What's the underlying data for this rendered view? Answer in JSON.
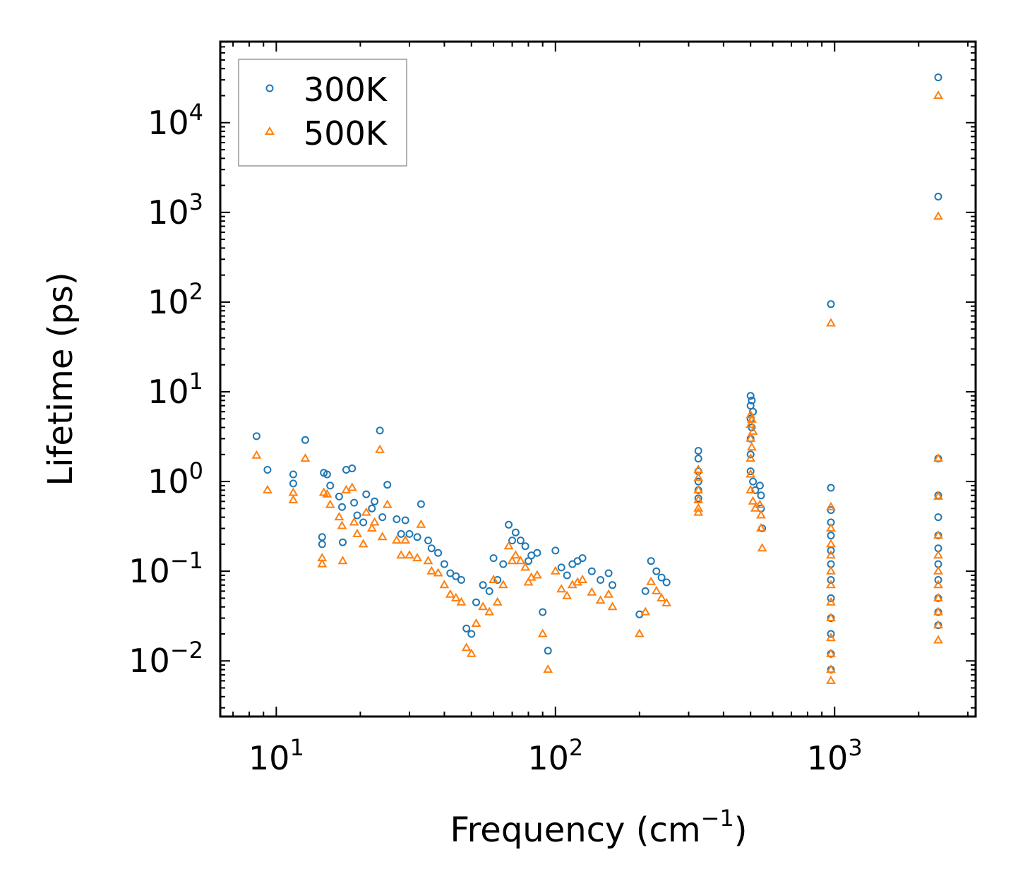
{
  "chart_data": {
    "type": "scatter",
    "title": "",
    "xlabel": "Frequency (cm",
    "xlabel_sup": "−1",
    "xlabel_end": ")",
    "ylabel": "Lifetime (ps)",
    "xscale": "log",
    "yscale": "log",
    "xlim": [
      6.3,
      3200
    ],
    "ylim": [
      0.0024,
      80000
    ],
    "x_ticks": [
      {
        "value": 10,
        "base": "10",
        "exp": "1"
      },
      {
        "value": 100,
        "base": "10",
        "exp": "2"
      },
      {
        "value": 1000,
        "base": "10",
        "exp": "3"
      }
    ],
    "y_ticks": [
      {
        "value": 0.01,
        "base": "10",
        "exp": "−2"
      },
      {
        "value": 0.1,
        "base": "10",
        "exp": "−1"
      },
      {
        "value": 1,
        "base": "10",
        "exp": "0"
      },
      {
        "value": 10,
        "base": "10",
        "exp": "1"
      },
      {
        "value": 100,
        "base": "10",
        "exp": "2"
      },
      {
        "value": 1000,
        "base": "10",
        "exp": "3"
      },
      {
        "value": 10000,
        "base": "10",
        "exp": "4"
      }
    ],
    "legend": {
      "position": "top-left"
    },
    "colors": {
      "s300": "#1f77b4",
      "s500": "#ff7f0e",
      "axis": "#000000",
      "legend_border": "#999999"
    },
    "series": [
      {
        "name": "300K",
        "marker": "circle",
        "color": "#1f77b4",
        "points": [
          [
            8.5,
            3.2
          ],
          [
            9.3,
            1.35
          ],
          [
            11.5,
            1.2
          ],
          [
            11.5,
            0.95
          ],
          [
            12.7,
            2.9
          ],
          [
            14.8,
            1.25
          ],
          [
            15.2,
            1.2
          ],
          [
            15.6,
            0.9
          ],
          [
            14.6,
            0.24
          ],
          [
            14.6,
            0.2
          ],
          [
            16.8,
            0.68
          ],
          [
            17.2,
            0.52
          ],
          [
            17.3,
            0.21
          ],
          [
            17.8,
            1.35
          ],
          [
            18.7,
            1.4
          ],
          [
            19.0,
            0.58
          ],
          [
            19.5,
            0.42
          ],
          [
            20.5,
            0.35
          ],
          [
            21.0,
            0.72
          ],
          [
            22.0,
            0.5
          ],
          [
            22.5,
            0.6
          ],
          [
            23.5,
            3.7
          ],
          [
            24.0,
            0.4
          ],
          [
            25.0,
            0.92
          ],
          [
            27.0,
            0.38
          ],
          [
            28.0,
            0.26
          ],
          [
            29.0,
            0.37
          ],
          [
            30.0,
            0.26
          ],
          [
            32.0,
            0.24
          ],
          [
            33.0,
            0.56
          ],
          [
            35.0,
            0.22
          ],
          [
            36.0,
            0.18
          ],
          [
            38.0,
            0.16
          ],
          [
            40.0,
            0.12
          ],
          [
            42.0,
            0.095
          ],
          [
            44.0,
            0.088
          ],
          [
            46.0,
            0.08
          ],
          [
            48.0,
            0.023
          ],
          [
            50.0,
            0.02
          ],
          [
            52.0,
            0.045
          ],
          [
            55.0,
            0.07
          ],
          [
            58.0,
            0.06
          ],
          [
            60.0,
            0.14
          ],
          [
            62.0,
            0.08
          ],
          [
            65.0,
            0.12
          ],
          [
            68.0,
            0.33
          ],
          [
            70.0,
            0.22
          ],
          [
            72.0,
            0.27
          ],
          [
            75.0,
            0.22
          ],
          [
            78.0,
            0.19
          ],
          [
            80.0,
            0.13
          ],
          [
            82.0,
            0.15
          ],
          [
            86.0,
            0.16
          ],
          [
            90.0,
            0.035
          ],
          [
            94.0,
            0.013
          ],
          [
            100.0,
            0.17
          ],
          [
            105.0,
            0.11
          ],
          [
            110.0,
            0.09
          ],
          [
            115.0,
            0.12
          ],
          [
            120.0,
            0.13
          ],
          [
            125.0,
            0.14
          ],
          [
            135.0,
            0.1
          ],
          [
            145.0,
            0.08
          ],
          [
            155.0,
            0.095
          ],
          [
            160.0,
            0.07
          ],
          [
            200.0,
            0.033
          ],
          [
            210.0,
            0.06
          ],
          [
            220.0,
            0.13
          ],
          [
            230.0,
            0.1
          ],
          [
            240.0,
            0.085
          ],
          [
            250.0,
            0.075
          ],
          [
            325.0,
            2.2
          ],
          [
            325.0,
            1.8
          ],
          [
            325.0,
            1.3
          ],
          [
            325.0,
            1.0
          ],
          [
            325.0,
            0.8
          ],
          [
            325.0,
            0.65
          ],
          [
            500.0,
            9.0
          ],
          [
            500.0,
            7.0
          ],
          [
            500.0,
            5.0
          ],
          [
            500.0,
            3.0
          ],
          [
            500.0,
            2.0
          ],
          [
            500.0,
            1.3
          ],
          [
            505.0,
            8.0
          ],
          [
            505.0,
            4.0
          ],
          [
            510.0,
            6.0
          ],
          [
            510.0,
            1.0
          ],
          [
            520.0,
            0.8
          ],
          [
            540.0,
            0.9
          ],
          [
            545.0,
            0.7
          ],
          [
            545.0,
            0.5
          ],
          [
            550.0,
            0.3
          ],
          [
            970.0,
            95
          ],
          [
            970.0,
            0.85
          ],
          [
            970.0,
            0.48
          ],
          [
            970.0,
            0.35
          ],
          [
            970.0,
            0.25
          ],
          [
            970.0,
            0.17
          ],
          [
            970.0,
            0.12
          ],
          [
            970.0,
            0.08
          ],
          [
            970.0,
            0.05
          ],
          [
            970.0,
            0.03
          ],
          [
            970.0,
            0.02
          ],
          [
            970.0,
            0.012
          ],
          [
            970.0,
            0.008
          ],
          [
            2350.0,
            32000
          ],
          [
            2350.0,
            1500
          ],
          [
            2350.0,
            1.8
          ],
          [
            2350.0,
            0.7
          ],
          [
            2350.0,
            0.4
          ],
          [
            2350.0,
            0.25
          ],
          [
            2350.0,
            0.18
          ],
          [
            2350.0,
            0.12
          ],
          [
            2350.0,
            0.08
          ],
          [
            2350.0,
            0.05
          ],
          [
            2350.0,
            0.035
          ],
          [
            2350.0,
            0.025
          ]
        ]
      },
      {
        "name": "500K",
        "marker": "triangle",
        "color": "#ff7f0e",
        "points": [
          [
            8.5,
            1.95
          ],
          [
            9.3,
            0.8
          ],
          [
            11.5,
            0.75
          ],
          [
            11.5,
            0.62
          ],
          [
            12.7,
            1.8
          ],
          [
            14.8,
            0.75
          ],
          [
            15.2,
            0.72
          ],
          [
            15.6,
            0.55
          ],
          [
            14.6,
            0.14
          ],
          [
            14.6,
            0.12
          ],
          [
            16.8,
            0.4
          ],
          [
            17.2,
            0.32
          ],
          [
            17.3,
            0.13
          ],
          [
            17.8,
            0.8
          ],
          [
            18.7,
            0.85
          ],
          [
            19.0,
            0.35
          ],
          [
            19.5,
            0.26
          ],
          [
            20.5,
            0.2
          ],
          [
            21.0,
            0.45
          ],
          [
            22.0,
            0.3
          ],
          [
            22.5,
            0.35
          ],
          [
            23.5,
            2.25
          ],
          [
            24.0,
            0.24
          ],
          [
            25.0,
            0.55
          ],
          [
            27.0,
            0.22
          ],
          [
            28.0,
            0.15
          ],
          [
            29.0,
            0.22
          ],
          [
            30.0,
            0.15
          ],
          [
            32.0,
            0.14
          ],
          [
            33.0,
            0.33
          ],
          [
            35.0,
            0.13
          ],
          [
            36.0,
            0.1
          ],
          [
            38.0,
            0.095
          ],
          [
            40.0,
            0.07
          ],
          [
            42.0,
            0.055
          ],
          [
            44.0,
            0.05
          ],
          [
            46.0,
            0.045
          ],
          [
            48.0,
            0.014
          ],
          [
            50.0,
            0.012
          ],
          [
            52.0,
            0.026
          ],
          [
            55.0,
            0.04
          ],
          [
            58.0,
            0.035
          ],
          [
            60.0,
            0.08
          ],
          [
            62.0,
            0.045
          ],
          [
            65.0,
            0.07
          ],
          [
            68.0,
            0.19
          ],
          [
            70.0,
            0.13
          ],
          [
            72.0,
            0.15
          ],
          [
            75.0,
            0.13
          ],
          [
            78.0,
            0.11
          ],
          [
            80.0,
            0.075
          ],
          [
            82.0,
            0.085
          ],
          [
            86.0,
            0.09
          ],
          [
            90.0,
            0.02
          ],
          [
            94.0,
            0.008
          ],
          [
            100.0,
            0.1
          ],
          [
            105.0,
            0.063
          ],
          [
            110.0,
            0.053
          ],
          [
            115.0,
            0.07
          ],
          [
            120.0,
            0.075
          ],
          [
            125.0,
            0.08
          ],
          [
            135.0,
            0.058
          ],
          [
            145.0,
            0.047
          ],
          [
            155.0,
            0.055
          ],
          [
            160.0,
            0.04
          ],
          [
            200.0,
            0.02
          ],
          [
            210.0,
            0.035
          ],
          [
            220.0,
            0.076
          ],
          [
            230.0,
            0.06
          ],
          [
            240.0,
            0.05
          ],
          [
            250.0,
            0.044
          ],
          [
            325.0,
            1.35
          ],
          [
            325.0,
            1.1
          ],
          [
            325.0,
            0.8
          ],
          [
            325.0,
            0.62
          ],
          [
            325.0,
            0.5
          ],
          [
            325.0,
            0.45
          ],
          [
            500.0,
            5.5
          ],
          [
            500.0,
            4.3
          ],
          [
            500.0,
            3.0
          ],
          [
            500.0,
            1.8
          ],
          [
            500.0,
            1.2
          ],
          [
            500.0,
            0.8
          ],
          [
            505.0,
            4.9
          ],
          [
            505.0,
            2.4
          ],
          [
            510.0,
            3.6
          ],
          [
            510.0,
            0.6
          ],
          [
            520.0,
            0.5
          ],
          [
            540.0,
            0.55
          ],
          [
            545.0,
            0.42
          ],
          [
            545.0,
            0.3
          ],
          [
            550.0,
            0.18
          ],
          [
            970.0,
            58
          ],
          [
            970.0,
            0.52
          ],
          [
            970.0,
            0.3
          ],
          [
            970.0,
            0.2
          ],
          [
            970.0,
            0.15
          ],
          [
            970.0,
            0.1
          ],
          [
            970.0,
            0.07
          ],
          [
            970.0,
            0.045
          ],
          [
            970.0,
            0.03
          ],
          [
            970.0,
            0.018
          ],
          [
            970.0,
            0.012
          ],
          [
            970.0,
            0.008
          ],
          [
            970.0,
            0.006
          ],
          [
            2350.0,
            20000
          ],
          [
            2350.0,
            900
          ],
          [
            2350.0,
            1.8
          ],
          [
            2350.0,
            0.68
          ],
          [
            2350.0,
            0.25
          ],
          [
            2350.0,
            0.15
          ],
          [
            2350.0,
            0.1
          ],
          [
            2350.0,
            0.07
          ],
          [
            2350.0,
            0.05
          ],
          [
            2350.0,
            0.035
          ],
          [
            2350.0,
            0.025
          ],
          [
            2350.0,
            0.017
          ]
        ]
      }
    ]
  }
}
